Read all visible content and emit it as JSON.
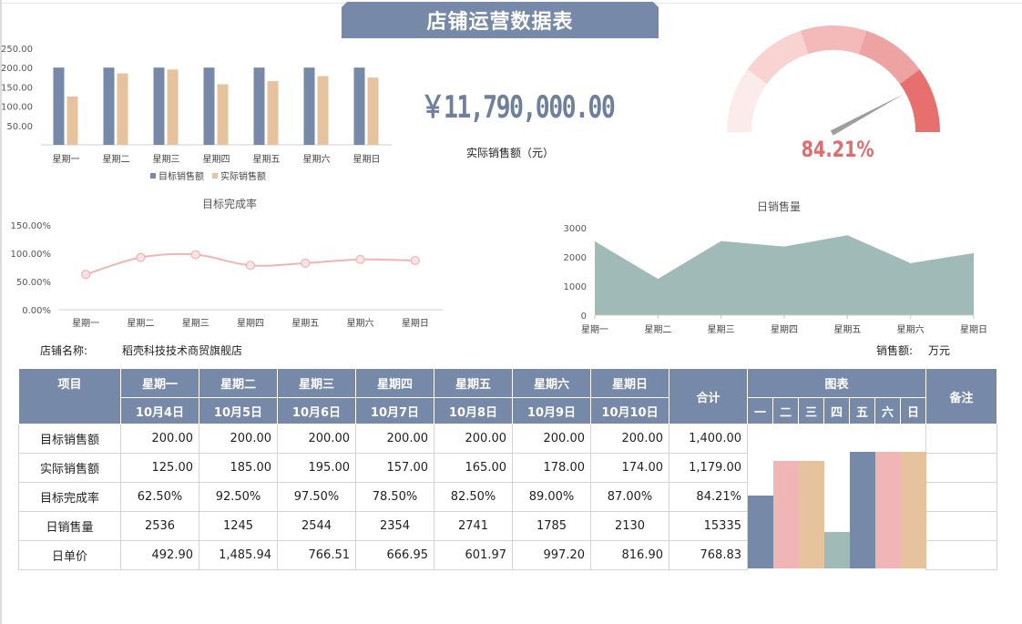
{
  "title": "店铺运营数据表",
  "total_sales": "￥11,790,000.00",
  "total_sales_label": "实际销售额（元）",
  "gauge": {
    "value": 84.21,
    "label": "84.21%"
  },
  "info": {
    "store_label": "店铺名称:",
    "store_name": "稻壳科技技术商贸旗舰店",
    "unit_label": "销售额:",
    "unit_value": "万元"
  },
  "chart_data": [
    {
      "type": "bar",
      "title": "",
      "categories": [
        "星期一",
        "星期二",
        "星期三",
        "星期四",
        "星期五",
        "星期六",
        "星期日"
      ],
      "series": [
        {
          "name": "目标销售额",
          "values": [
            200,
            200,
            200,
            200,
            200,
            200,
            200
          ],
          "color": "#7689a8"
        },
        {
          "name": "实际销售额",
          "values": [
            125,
            185,
            195,
            157,
            165,
            178,
            174
          ],
          "color": "#e6c39c"
        }
      ],
      "ylim": [
        0,
        250
      ],
      "yticks": [
        "250.00",
        "200.00",
        "150.00",
        "100.00",
        "50.00"
      ],
      "legend": "bottom"
    },
    {
      "type": "line",
      "title": "目标完成率",
      "categories": [
        "星期一",
        "星期二",
        "星期三",
        "星期四",
        "星期五",
        "星期六",
        "星期日"
      ],
      "values": [
        62.5,
        92.5,
        97.5,
        78.5,
        82.5,
        89.0,
        87.0
      ],
      "ylim": [
        0,
        150
      ],
      "yticks": [
        "150.00%",
        "100.00%",
        "50.00%",
        "0.00%"
      ],
      "color": "#f0b5b2"
    },
    {
      "type": "area",
      "title": "日销售量",
      "categories": [
        "星期一",
        "星期二",
        "星期三",
        "星期四",
        "星期五",
        "星期六",
        "星期日"
      ],
      "values": [
        2536,
        1245,
        2544,
        2354,
        2741,
        1785,
        2130
      ],
      "ylim": [
        0,
        3000
      ],
      "yticks": [
        "3000",
        "2000",
        "1000",
        "0"
      ],
      "color": "#a0bab8"
    }
  ],
  "table": {
    "head": {
      "item": "项目",
      "days": [
        "星期一",
        "星期二",
        "星期三",
        "星期四",
        "星期五",
        "星期六",
        "星期日"
      ],
      "dates": [
        "10月4日",
        "10月5日",
        "10月6日",
        "10月7日",
        "10月8日",
        "10月9日",
        "10月10日"
      ],
      "total": "合计",
      "chart": "图表",
      "chart_days": [
        "一",
        "二",
        "三",
        "四",
        "五",
        "六",
        "日"
      ],
      "note": "备注"
    },
    "rows": [
      {
        "label": "目标销售额",
        "values": [
          "200.00",
          "200.00",
          "200.00",
          "200.00",
          "200.00",
          "200.00",
          "200.00"
        ],
        "total": "1,400.00",
        "align": "num"
      },
      {
        "label": "实际销售额",
        "values": [
          "125.00",
          "185.00",
          "195.00",
          "157.00",
          "165.00",
          "178.00",
          "174.00"
        ],
        "total": "1,179.00",
        "align": "num"
      },
      {
        "label": "目标完成率",
        "values": [
          "62.50%",
          "92.50%",
          "97.50%",
          "78.50%",
          "82.50%",
          "89.00%",
          "87.00%"
        ],
        "total": "84.21%",
        "align": "mid"
      },
      {
        "label": "日销售量",
        "values": [
          "2536",
          "1245",
          "2544",
          "2354",
          "2741",
          "1785",
          "2130"
        ],
        "total": "15335",
        "align": "mid"
      },
      {
        "label": "日单价",
        "values": [
          "492.90",
          "1,485.94",
          "766.51",
          "666.95",
          "601.97",
          "997.20",
          "816.90"
        ],
        "total": "768.83",
        "align": "num"
      }
    ],
    "mini_chart": {
      "values": [
        62.5,
        92.5,
        92.5,
        31.0,
        100,
        100,
        100
      ],
      "colors": [
        "#7689a8",
        "#efb6b5",
        "#e6c39c",
        "#a0bab8",
        "#7689a8",
        "#efb6b5",
        "#e6c39c"
      ]
    }
  }
}
